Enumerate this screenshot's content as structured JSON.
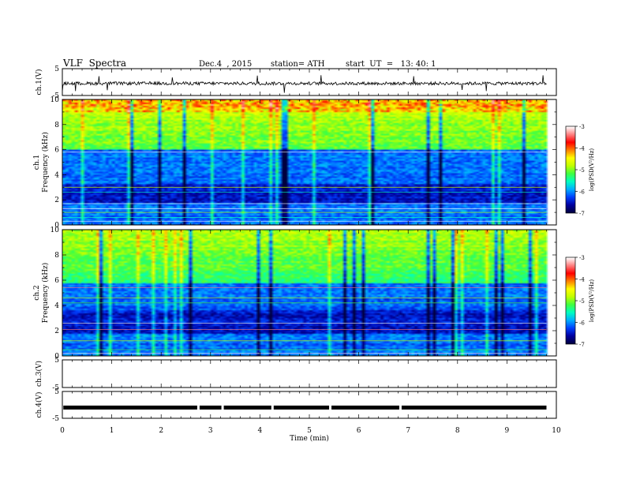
{
  "header": {
    "title": "VLF  Spectra",
    "date": "Dec.4  , 2015",
    "station": "station= ATH",
    "start": "start  UT  =   13: 40: 1"
  },
  "colors": {
    "frame": "#000000",
    "colormap": [
      "#000040",
      "#0000a0",
      "#0040ff",
      "#00b0ff",
      "#00ffc0",
      "#40ff40",
      "#c0ff00",
      "#ffff00",
      "#ff8000",
      "#ff0000",
      "#ff8080",
      "#ffffff"
    ]
  },
  "chart_data": [
    {
      "type": "line",
      "panel": "ch1-waveform",
      "ylabel": "ch.1(V)",
      "ylim": [
        -5,
        5
      ],
      "yticks": [
        "5",
        "-5"
      ],
      "xlim": [
        0,
        10
      ],
      "baseline": -0.5
    },
    {
      "type": "heatmap",
      "panel": "ch1-spectrogram",
      "ylabel": "ch.1\nFrequency  (kHz)",
      "ylim": [
        0,
        10
      ],
      "yticks": [
        "10",
        "8",
        "6",
        "4",
        "2",
        "0"
      ],
      "xlim": [
        0,
        10
      ],
      "data_end_min": 9.8,
      "colorbar": {
        "label": "log(PSD(V²/Hz)",
        "range": [
          -7,
          -3
        ],
        "ticks": [
          "-3",
          "-4",
          "-5",
          "-6",
          "-7"
        ]
      }
    },
    {
      "type": "heatmap",
      "panel": "ch2-spectrogram",
      "ylabel": "ch.2\nFrequency  (kHz)",
      "ylim": [
        0,
        10
      ],
      "yticks": [
        "10",
        "8",
        "6",
        "4",
        "2",
        "0"
      ],
      "xlim": [
        0,
        10
      ],
      "data_end_min": 9.8,
      "colorbar": {
        "label": "log(PSD(V²/Hz)",
        "range": [
          -7,
          -3
        ],
        "ticks": [
          "-3",
          "-4",
          "-5",
          "-6",
          "-7"
        ]
      }
    },
    {
      "type": "line",
      "panel": "ch3-waveform",
      "ylabel": "ch.3(V)",
      "ylim": [
        -5,
        5
      ],
      "yticks": [
        "5",
        "-5"
      ],
      "xlim": [
        0,
        10
      ]
    },
    {
      "type": "line",
      "panel": "ch4-waveform",
      "ylabel": "ch.4(V)",
      "ylim": [
        -5,
        5
      ],
      "yticks": [
        "5",
        "-5"
      ],
      "xlim": [
        0,
        10
      ],
      "baseline": -1
    }
  ],
  "x_axis": {
    "label": "Time  (min)",
    "ticks": [
      "0",
      "1",
      "2",
      "3",
      "4",
      "5",
      "6",
      "7",
      "8",
      "9",
      "10"
    ]
  }
}
